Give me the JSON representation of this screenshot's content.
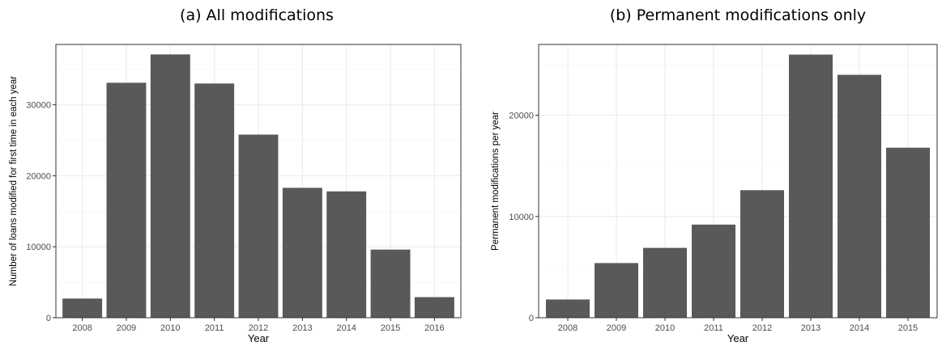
{
  "chart_data": [
    {
      "type": "bar",
      "title": "(a) All modifications",
      "xlabel": "Year",
      "ylabel": "Number of loans modified for first time in each year",
      "categories": [
        "2008",
        "2009",
        "2010",
        "2011",
        "2012",
        "2013",
        "2014",
        "2015",
        "2016"
      ],
      "values": [
        2700,
        33100,
        37100,
        33000,
        25800,
        18300,
        17800,
        9600,
        2900
      ],
      "yticks": [
        0,
        10000,
        20000,
        30000
      ],
      "ytick_labels": [
        "0",
        "10000",
        "20000",
        "30000"
      ],
      "ylim": [
        0,
        38500
      ],
      "bar_color": "#595959",
      "grid": true
    },
    {
      "type": "bar",
      "title": "(b) Permanent modifications only",
      "xlabel": "Year",
      "ylabel": "Permanent modifications per year",
      "categories": [
        "2008",
        "2009",
        "2010",
        "2011",
        "2012",
        "2013",
        "2014",
        "2015"
      ],
      "values": [
        1800,
        5400,
        6900,
        9200,
        12600,
        26000,
        24000,
        16800
      ],
      "yticks": [
        0,
        10000,
        20000
      ],
      "ytick_labels": [
        "0",
        "10000",
        "20000"
      ],
      "ylim": [
        0,
        27000
      ],
      "bar_color": "#595959",
      "grid": true
    }
  ]
}
